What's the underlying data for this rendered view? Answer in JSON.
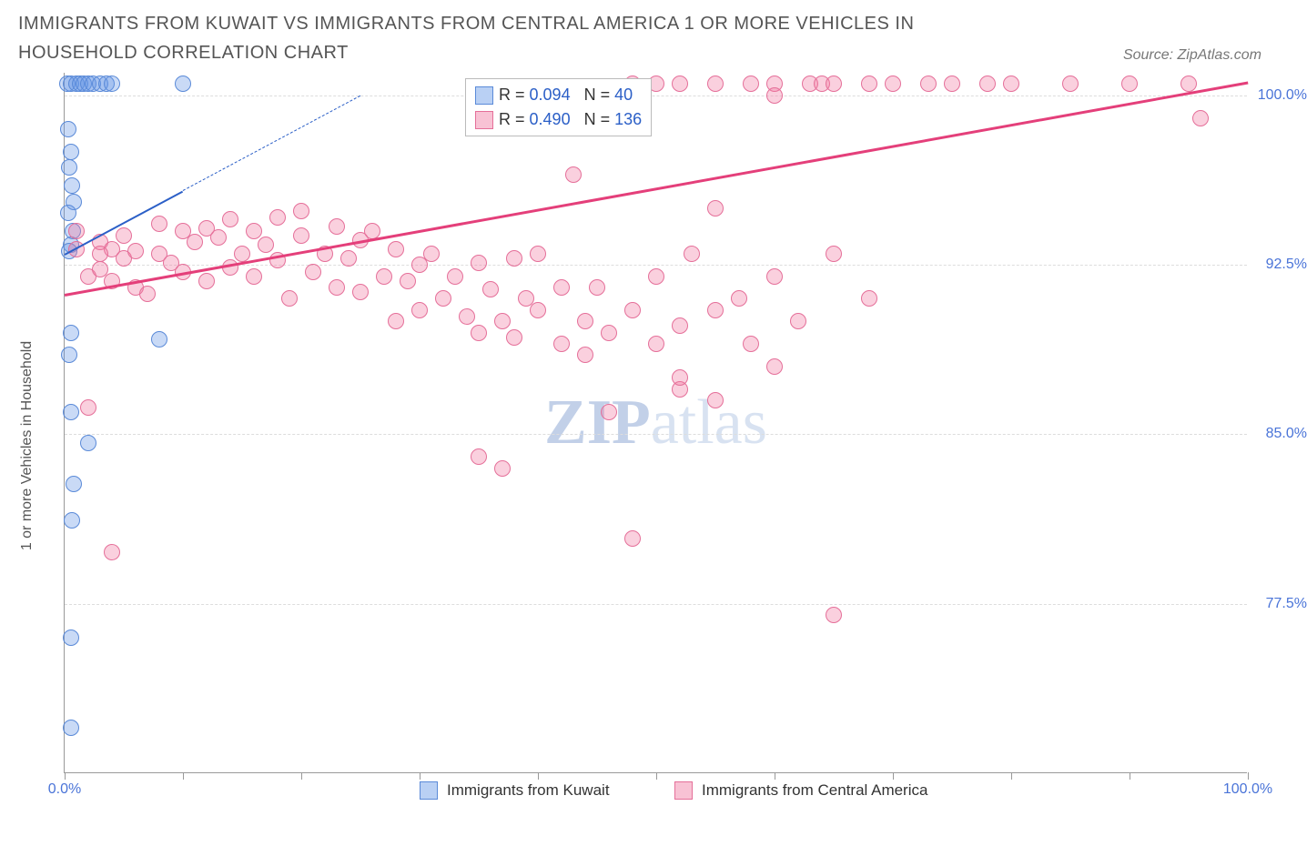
{
  "title": "IMMIGRANTS FROM KUWAIT VS IMMIGRANTS FROM CENTRAL AMERICA 1 OR MORE VEHICLES IN HOUSEHOLD CORRELATION CHART",
  "source_label": "Source: ZipAtlas.com",
  "watermark": {
    "bold": "ZIP",
    "rest": "atlas"
  },
  "y_axis": {
    "title": "1 or more Vehicles in Household",
    "min": 70.0,
    "max": 101.0,
    "ticks": [
      77.5,
      85.0,
      92.5,
      100.0
    ],
    "tick_labels": [
      "77.5%",
      "85.0%",
      "92.5%",
      "100.0%"
    ],
    "label_color": "#4a74d8"
  },
  "x_axis": {
    "min": 0.0,
    "max": 100.0,
    "ticks": [
      0,
      10,
      20,
      30,
      40,
      50,
      60,
      70,
      80,
      90,
      100
    ],
    "end_labels": {
      "left": "0.0%",
      "right": "100.0%"
    },
    "label_color": "#4a74d8"
  },
  "series": [
    {
      "id": "kuwait",
      "name": "Immigrants from Kuwait",
      "marker_fill": "rgba(100,150,230,0.35)",
      "marker_stroke": "#5a8ad8",
      "marker_radius": 9,
      "trend": {
        "x1": 0,
        "y1": 93.0,
        "x2": 10,
        "y2": 95.8,
        "dashed_extend_to_x": 25,
        "color": "#2b5fc7",
        "width": 2
      },
      "points": [
        [
          0.2,
          100.5
        ],
        [
          0.5,
          100.5
        ],
        [
          1.0,
          100.5
        ],
        [
          1.3,
          100.5
        ],
        [
          1.6,
          100.5
        ],
        [
          2.0,
          100.5
        ],
        [
          2.4,
          100.5
        ],
        [
          3.0,
          100.5
        ],
        [
          3.5,
          100.5
        ],
        [
          4.0,
          100.5
        ],
        [
          10.0,
          100.5
        ],
        [
          0.3,
          98.5
        ],
        [
          0.5,
          97.5
        ],
        [
          0.4,
          96.8
        ],
        [
          0.6,
          96.0
        ],
        [
          0.8,
          95.3
        ],
        [
          0.3,
          94.8
        ],
        [
          0.7,
          94.0
        ],
        [
          0.5,
          93.4
        ],
        [
          0.4,
          93.1
        ],
        [
          0.5,
          89.5
        ],
        [
          0.4,
          88.5
        ],
        [
          0.5,
          86.0
        ],
        [
          8.0,
          89.2
        ],
        [
          2.0,
          84.6
        ],
        [
          0.8,
          82.8
        ],
        [
          0.6,
          81.2
        ],
        [
          0.5,
          76.0
        ],
        [
          0.5,
          72.0
        ]
      ]
    },
    {
      "id": "central_america",
      "name": "Immigrants from Central America",
      "marker_fill": "rgba(240,120,160,0.35)",
      "marker_stroke": "#e56f99",
      "marker_radius": 9,
      "trend": {
        "x1": 0,
        "y1": 91.2,
        "x2": 100,
        "y2": 100.6,
        "color": "#e43f7a",
        "width": 3
      },
      "points": [
        [
          1,
          93.2
        ],
        [
          2,
          92.0
        ],
        [
          3,
          93.5
        ],
        [
          3,
          92.3
        ],
        [
          4,
          93.2
        ],
        [
          4,
          91.8
        ],
        [
          5,
          92.8
        ],
        [
          5,
          93.8
        ],
        [
          6,
          93.1
        ],
        [
          6,
          91.5
        ],
        [
          7,
          91.2
        ],
        [
          8,
          93.0
        ],
        [
          8,
          94.3
        ],
        [
          9,
          92.6
        ],
        [
          10,
          94.0
        ],
        [
          10,
          92.2
        ],
        [
          11,
          93.5
        ],
        [
          12,
          94.1
        ],
        [
          12,
          91.8
        ],
        [
          13,
          93.7
        ],
        [
          14,
          92.4
        ],
        [
          14,
          94.5
        ],
        [
          15,
          93.0
        ],
        [
          16,
          94.0
        ],
        [
          16,
          92.0
        ],
        [
          17,
          93.4
        ],
        [
          18,
          94.6
        ],
        [
          18,
          92.7
        ],
        [
          19,
          91.0
        ],
        [
          20,
          93.8
        ],
        [
          20,
          94.9
        ],
        [
          21,
          92.2
        ],
        [
          22,
          93.0
        ],
        [
          23,
          91.5
        ],
        [
          23,
          94.2
        ],
        [
          24,
          92.8
        ],
        [
          25,
          91.3
        ],
        [
          25,
          93.6
        ],
        [
          26,
          94.0
        ],
        [
          27,
          92.0
        ],
        [
          28,
          90.0
        ],
        [
          28,
          93.2
        ],
        [
          29,
          91.8
        ],
        [
          30,
          92.5
        ],
        [
          30,
          90.5
        ],
        [
          31,
          93.0
        ],
        [
          32,
          91.0
        ],
        [
          33,
          92.0
        ],
        [
          34,
          90.2
        ],
        [
          35,
          92.6
        ],
        [
          35,
          89.5
        ],
        [
          36,
          91.4
        ],
        [
          37,
          90.0
        ],
        [
          38,
          92.8
        ],
        [
          38,
          89.3
        ],
        [
          39,
          91.0
        ],
        [
          40,
          90.5
        ],
        [
          40,
          93.0
        ],
        [
          42,
          89.0
        ],
        [
          42,
          91.5
        ],
        [
          43,
          96.5
        ],
        [
          44,
          90.0
        ],
        [
          45,
          91.5
        ],
        [
          46,
          89.5
        ],
        [
          48,
          90.5
        ],
        [
          50,
          92.0
        ],
        [
          50,
          89.0
        ],
        [
          35,
          84.0
        ],
        [
          37,
          83.5
        ],
        [
          44,
          88.5
        ],
        [
          46,
          86.0
        ],
        [
          52,
          87.0
        ],
        [
          52,
          89.8
        ],
        [
          48,
          100.5
        ],
        [
          50,
          100.5
        ],
        [
          52,
          100.5
        ],
        [
          55,
          100.5
        ],
        [
          58,
          100.5
        ],
        [
          60,
          100.5
        ],
        [
          60,
          100.0
        ],
        [
          63,
          100.5
        ],
        [
          64,
          100.5
        ],
        [
          65,
          100.5
        ],
        [
          68,
          100.5
        ],
        [
          70,
          100.5
        ],
        [
          73,
          100.5
        ],
        [
          75,
          100.5
        ],
        [
          78,
          100.5
        ],
        [
          80,
          100.5
        ],
        [
          85,
          100.5
        ],
        [
          90,
          100.5
        ],
        [
          95,
          100.5
        ],
        [
          53,
          93.0
        ],
        [
          55,
          90.5
        ],
        [
          55,
          95.0
        ],
        [
          57,
          91.0
        ],
        [
          58,
          89.0
        ],
        [
          60,
          92.0
        ],
        [
          62,
          90.0
        ],
        [
          65,
          93.0
        ],
        [
          68,
          91.0
        ],
        [
          52,
          87.5
        ],
        [
          55,
          86.5
        ],
        [
          60,
          88.0
        ],
        [
          48,
          80.4
        ],
        [
          65,
          77.0
        ],
        [
          2,
          86.2
        ],
        [
          4,
          79.8
        ],
        [
          3,
          93.0
        ],
        [
          1,
          94.0
        ],
        [
          96,
          99.0
        ]
      ]
    }
  ],
  "stats_legend": {
    "rows": [
      {
        "swatch_fill": "rgba(100,150,230,0.45)",
        "swatch_stroke": "#5a8ad8",
        "r_label": "R =",
        "r_value": "0.094",
        "n_label": "N =",
        "n_value": "40"
      },
      {
        "swatch_fill": "rgba(240,120,160,0.45)",
        "swatch_stroke": "#e56f99",
        "r_label": "R =",
        "r_value": "0.490",
        "n_label": "N =",
        "n_value": "136"
      }
    ],
    "text_color": "#333333",
    "value_color": "#2b5fc7"
  },
  "bottom_legend": [
    {
      "swatch_fill": "rgba(100,150,230,0.45)",
      "swatch_stroke": "#5a8ad8",
      "label": "Immigrants from Kuwait"
    },
    {
      "swatch_fill": "rgba(240,120,160,0.45)",
      "swatch_stroke": "#e56f99",
      "label": "Immigrants from Central America"
    }
  ],
  "colors": {
    "background": "#ffffff",
    "grid": "#dddddd",
    "axis": "#999999",
    "title": "#555555"
  }
}
